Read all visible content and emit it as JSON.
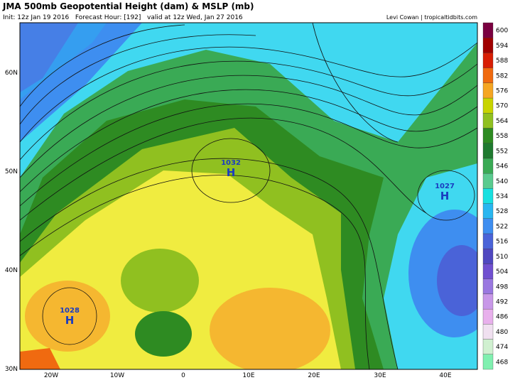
{
  "header": {
    "title": "JMA 500mb Geopotential Height (dam) & MSLP (mb)",
    "subtitle": "Init: 12z Jan 19 2016   Forecast Hour: [192]   valid at 12z Wed, Jan 27 2016",
    "credit": "Levi Cowan | tropicaltidbits.com"
  },
  "map": {
    "lat_labels": [
      "60N",
      "50N",
      "40N",
      "30N"
    ],
    "lon_labels": [
      "20W",
      "10W",
      "0",
      "10E",
      "20E",
      "30E",
      "40E"
    ],
    "pressure_centers": [
      {
        "label": "1032",
        "symbol": "H"
      },
      {
        "label": "1028",
        "symbol": "H"
      },
      {
        "label": "1027",
        "symbol": "H"
      }
    ]
  },
  "colorbar": {
    "labels": [
      600,
      594,
      588,
      582,
      576,
      570,
      564,
      558,
      552,
      546,
      540,
      534,
      528,
      522,
      516,
      510,
      504,
      498,
      492,
      486,
      480,
      474,
      468
    ],
    "colors": [
      "#7a0040",
      "#a00000",
      "#d81e05",
      "#f06a10",
      "#f5a623",
      "#c8d400",
      "#90c020",
      "#2e8b22",
      "#1f7a30",
      "#3aaa55",
      "#5acb8f",
      "#19e0e0",
      "#29b6f0",
      "#3e8ef0",
      "#4a63d8",
      "#5048c0",
      "#7050d0",
      "#9a78e0",
      "#c898e8",
      "#e8b0ec",
      "#f0e0f0",
      "#d0f0d0",
      "#80f0b0"
    ]
  }
}
